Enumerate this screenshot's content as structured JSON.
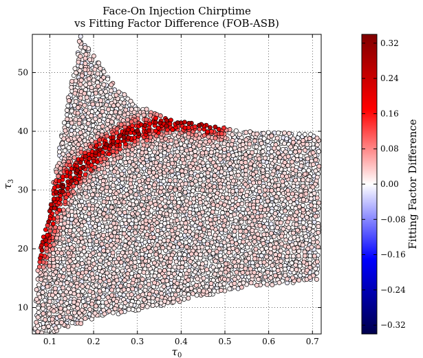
{
  "chart_data": {
    "type": "scatter",
    "title": "Face-On Injection Chirptime",
    "subtitle": "vs Fitting Factor Difference (FOB-ASB)",
    "xlabel": "τ",
    "xlabel_sub": "0",
    "ylabel": "τ",
    "ylabel_sub": "3",
    "xlim": [
      0.06,
      0.72
    ],
    "ylim": [
      5.5,
      56.5
    ],
    "xticks": [
      0.1,
      0.2,
      0.3,
      0.4,
      0.5,
      0.6,
      0.7
    ],
    "xtick_labels": [
      "0.1",
      "0.2",
      "0.3",
      "0.4",
      "0.5",
      "0.6",
      "0.7"
    ],
    "yticks": [
      10,
      20,
      30,
      40,
      50
    ],
    "ytick_labels": [
      "10",
      "20",
      "30",
      "40",
      "50"
    ],
    "grid": true,
    "colorbar": {
      "label": "Fitting Factor Difference",
      "colormap": "seismic",
      "range": [
        -0.34,
        0.34
      ],
      "ticks": [
        0.32,
        0.24,
        0.16,
        0.08,
        0.0,
        -0.08,
        -0.16,
        -0.24,
        -0.32
      ],
      "tick_labels": [
        "0.32",
        "0.24",
        "0.16",
        "0.08",
        "0.00",
        "−0.08",
        "−0.16",
        "−0.24",
        "−0.32"
      ]
    },
    "region": {
      "boundary": [
        [
          0.065,
          5.5
        ],
        [
          0.072,
          17.5
        ],
        [
          0.085,
          22.0
        ],
        [
          0.11,
          32.0
        ],
        [
          0.14,
          45.0
        ],
        [
          0.17,
          56.5
        ],
        [
          0.2,
          53.0
        ],
        [
          0.25,
          47.5
        ],
        [
          0.3,
          44.5
        ],
        [
          0.36,
          42.5
        ],
        [
          0.42,
          41.5
        ],
        [
          0.55,
          40.0
        ],
        [
          0.715,
          39.5
        ],
        [
          0.715,
          14.5
        ],
        [
          0.55,
          13.5
        ],
        [
          0.4,
          11.0
        ],
        [
          0.2,
          8.0
        ],
        [
          0.12,
          6.0
        ],
        [
          0.1,
          5.5
        ]
      ],
      "ridge": [
        [
          0.07,
          18.5
        ],
        [
          0.1,
          26.5
        ],
        [
          0.13,
          30.5
        ],
        [
          0.17,
          34.0
        ],
        [
          0.22,
          37.0
        ],
        [
          0.28,
          39.5
        ],
        [
          0.34,
          41.0
        ],
        [
          0.4,
          41.8
        ],
        [
          0.48,
          40.8
        ]
      ],
      "ridge_peak_value": 0.3,
      "background_value": 0.01
    }
  },
  "colors": {
    "point_edge": "#000000",
    "colormap_negative": "#00004c",
    "colormap_zero": "#ffffff",
    "colormap_positive": "#800000"
  }
}
